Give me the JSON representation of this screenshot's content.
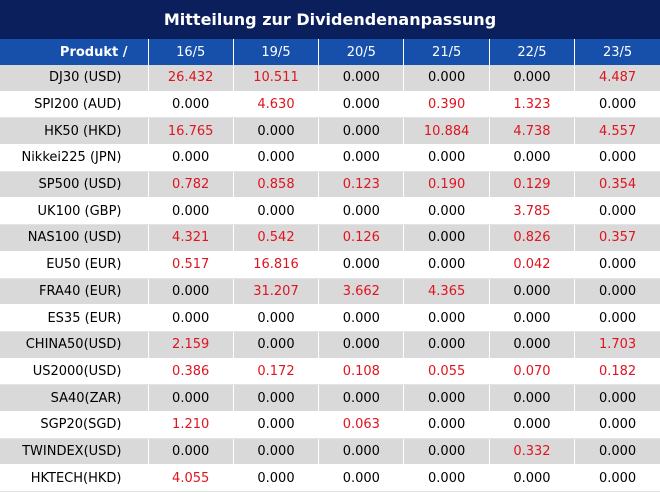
{
  "title": "Mitteilung zur Dividendenanpassung",
  "header": {
    "product_label": "Produkt /",
    "dates": [
      "16/5",
      "19/5",
      "20/5",
      "21/5",
      "22/5",
      "23/5"
    ]
  },
  "colors": {
    "title_bg": "#0b1f5c",
    "header_bg": "#1750ab",
    "shade": "#d9d9d9",
    "positive": "#e0141e"
  },
  "rows": [
    {
      "name": "DJ30 (USD)",
      "values": [
        "26.432",
        "10.511",
        "0.000",
        "0.000",
        "0.000",
        "4.487"
      ]
    },
    {
      "name": "SPI200 (AUD)",
      "values": [
        "0.000",
        "4.630",
        "0.000",
        "0.390",
        "1.323",
        "0.000"
      ]
    },
    {
      "name": "HK50 (HKD)",
      "values": [
        "16.765",
        "0.000",
        "0.000",
        "10.884",
        "4.738",
        "4.557"
      ]
    },
    {
      "name": "Nikkei225 (JPN)",
      "values": [
        "0.000",
        "0.000",
        "0.000",
        "0.000",
        "0.000",
        "0.000"
      ]
    },
    {
      "name": "SP500 (USD)",
      "values": [
        "0.782",
        "0.858",
        "0.123",
        "0.190",
        "0.129",
        "0.354"
      ]
    },
    {
      "name": "UK100 (GBP)",
      "values": [
        "0.000",
        "0.000",
        "0.000",
        "0.000",
        "3.785",
        "0.000"
      ]
    },
    {
      "name": "NAS100 (USD)",
      "values": [
        "4.321",
        "0.542",
        "0.126",
        "0.000",
        "0.826",
        "0.357"
      ]
    },
    {
      "name": "EU50 (EUR)",
      "values": [
        "0.517",
        "16.816",
        "0.000",
        "0.000",
        "0.042",
        "0.000"
      ]
    },
    {
      "name": "FRA40 (EUR)",
      "values": [
        "0.000",
        "31.207",
        "3.662",
        "4.365",
        "0.000",
        "0.000"
      ]
    },
    {
      "name": "ES35 (EUR)",
      "values": [
        "0.000",
        "0.000",
        "0.000",
        "0.000",
        "0.000",
        "0.000"
      ]
    },
    {
      "name": "CHINA50(USD)",
      "values": [
        "2.159",
        "0.000",
        "0.000",
        "0.000",
        "0.000",
        "1.703"
      ]
    },
    {
      "name": "US2000(USD)",
      "values": [
        "0.386",
        "0.172",
        "0.108",
        "0.055",
        "0.070",
        "0.182"
      ]
    },
    {
      "name": "SA40(ZAR)",
      "values": [
        "0.000",
        "0.000",
        "0.000",
        "0.000",
        "0.000",
        "0.000"
      ]
    },
    {
      "name": "SGP20(SGD)",
      "values": [
        "1.210",
        "0.000",
        "0.063",
        "0.000",
        "0.000",
        "0.000"
      ]
    },
    {
      "name": "TWINDEX(USD)",
      "values": [
        "0.000",
        "0.000",
        "0.000",
        "0.000",
        "0.332",
        "0.000"
      ]
    },
    {
      "name": "HKTECH(HKD)",
      "values": [
        "4.055",
        "0.000",
        "0.000",
        "0.000",
        "0.000",
        "0.000"
      ]
    }
  ]
}
